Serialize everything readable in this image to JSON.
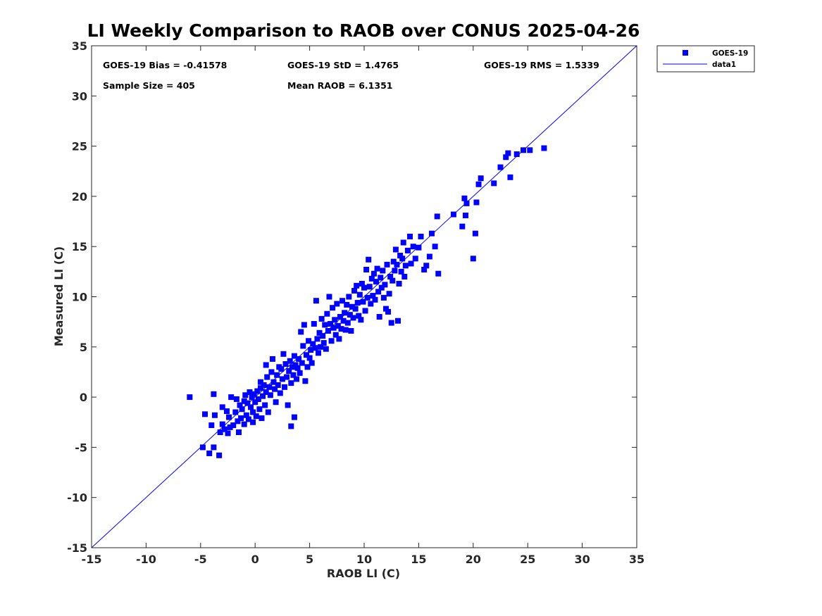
{
  "chart_data": {
    "type": "scatter",
    "title": "LI Weekly Comparison to RAOB over CONUS 2025-04-26",
    "xlabel": "RAOB LI (C)",
    "ylabel": "Measured LI (C)",
    "xlim": [
      -15,
      35
    ],
    "ylim": [
      -15,
      35
    ],
    "xticks": [
      "-15",
      "-10",
      "-5",
      "0",
      "5",
      "10",
      "15",
      "20",
      "25",
      "30",
      "35"
    ],
    "yticks": [
      "-15",
      "-10",
      "-5",
      "0",
      "5",
      "10",
      "15",
      "20",
      "25",
      "30",
      "35"
    ],
    "grid": false,
    "legend_position": "outside-top-right",
    "stats": {
      "bias": "GOES-19 Bias = -0.41578",
      "std": "GOES-19 StD = 1.4765",
      "rms": "GOES-19 RMS = 1.5339",
      "sample_size": "Sample Size = 405",
      "mean_raob": "Mean RAOB = 6.1351"
    },
    "series": [
      {
        "name": "GOES-19",
        "kind": "scatter",
        "marker": "square",
        "color": "#0000ff",
        "points": [
          [
            -6.0,
            0.0
          ],
          [
            -4.8,
            -5.0
          ],
          [
            -4.6,
            -1.7
          ],
          [
            -4.2,
            -5.6
          ],
          [
            -4.0,
            -2.8
          ],
          [
            -3.8,
            0.3
          ],
          [
            -3.8,
            -5.0
          ],
          [
            -3.7,
            -1.8
          ],
          [
            -3.3,
            -5.8
          ],
          [
            -3.2,
            -3.5
          ],
          [
            -3.0,
            -1.0
          ],
          [
            -3.0,
            -2.7
          ],
          [
            -2.8,
            -3.2
          ],
          [
            -2.6,
            -1.4
          ],
          [
            -2.5,
            -3.6
          ],
          [
            -2.4,
            -2.0
          ],
          [
            -2.3,
            -3.0
          ],
          [
            -2.2,
            0.0
          ],
          [
            -2.0,
            -2.8
          ],
          [
            -1.8,
            -1.5
          ],
          [
            -1.7,
            -0.2
          ],
          [
            -1.6,
            -2.4
          ],
          [
            -1.5,
            -3.5
          ],
          [
            -1.4,
            -0.8
          ],
          [
            -1.3,
            -2.1
          ],
          [
            -1.2,
            -1.2
          ],
          [
            -1.0,
            -0.4
          ],
          [
            -1.0,
            -2.7
          ],
          [
            -0.9,
            0.2
          ],
          [
            -0.8,
            -1.8
          ],
          [
            -0.7,
            -0.6
          ],
          [
            -0.6,
            -2.2
          ],
          [
            -0.5,
            0.5
          ],
          [
            -0.4,
            -1.0
          ],
          [
            -0.3,
            0.0
          ],
          [
            -0.2,
            -2.5
          ],
          [
            -0.2,
            -1.5
          ],
          [
            -0.1,
            0.3
          ],
          [
            0.0,
            -0.5
          ],
          [
            0.1,
            -1.9
          ],
          [
            0.2,
            0.6
          ],
          [
            0.3,
            -0.2
          ],
          [
            0.4,
            -1.2
          ],
          [
            0.5,
            0.9
          ],
          [
            0.5,
            1.5
          ],
          [
            0.6,
            -2.1
          ],
          [
            0.7,
            0.1
          ],
          [
            0.8,
            1.2
          ],
          [
            0.9,
            -0.8
          ],
          [
            1.0,
            0.5
          ],
          [
            1.0,
            3.2
          ],
          [
            1.1,
            2.0
          ],
          [
            1.2,
            -1.5
          ],
          [
            1.3,
            1.0
          ],
          [
            1.4,
            0.2
          ],
          [
            1.5,
            2.5
          ],
          [
            1.6,
            3.8
          ],
          [
            1.7,
            1.5
          ],
          [
            1.8,
            0.8
          ],
          [
            1.9,
            -0.5
          ],
          [
            2.0,
            2.2
          ],
          [
            2.1,
            1.2
          ],
          [
            2.2,
            3.0
          ],
          [
            2.3,
            0.4
          ],
          [
            2.4,
            2.8
          ],
          [
            2.5,
            1.8
          ],
          [
            2.6,
            4.3
          ],
          [
            2.7,
            1.0
          ],
          [
            2.8,
            3.3
          ],
          [
            2.9,
            2.0
          ],
          [
            3.0,
            -0.8
          ],
          [
            3.1,
            2.6
          ],
          [
            3.2,
            3.6
          ],
          [
            3.3,
            1.4
          ],
          [
            3.3,
            -2.9
          ],
          [
            3.4,
            3.0
          ],
          [
            3.5,
            2.2
          ],
          [
            3.6,
            -2.0
          ],
          [
            3.6,
            4.1
          ],
          [
            3.7,
            3.2
          ],
          [
            3.8,
            1.8
          ],
          [
            3.9,
            2.9
          ],
          [
            4.0,
            3.8
          ],
          [
            4.1,
            2.4
          ],
          [
            4.2,
            6.5
          ],
          [
            4.3,
            3.4
          ],
          [
            4.4,
            5.1
          ],
          [
            4.5,
            7.2
          ],
          [
            4.6,
            1.6
          ],
          [
            4.7,
            4.2
          ],
          [
            4.8,
            3.0
          ],
          [
            4.9,
            5.6
          ],
          [
            5.0,
            3.9
          ],
          [
            5.1,
            4.7
          ],
          [
            5.2,
            3.4
          ],
          [
            5.3,
            5.3
          ],
          [
            5.4,
            7.3
          ],
          [
            5.5,
            4.9
          ],
          [
            5.6,
            9.6
          ],
          [
            5.7,
            5.8
          ],
          [
            5.8,
            4.4
          ],
          [
            5.9,
            6.4
          ],
          [
            6.0,
            5.0
          ],
          [
            6.1,
            7.8
          ],
          [
            6.2,
            6.1
          ],
          [
            6.3,
            5.4
          ],
          [
            6.4,
            7.2
          ],
          [
            6.5,
            4.8
          ],
          [
            6.6,
            8.3
          ],
          [
            6.7,
            6.6
          ],
          [
            6.8,
            10.0
          ],
          [
            6.9,
            7.3
          ],
          [
            7.0,
            5.6
          ],
          [
            7.1,
            8.9
          ],
          [
            7.2,
            6.9
          ],
          [
            7.3,
            7.7
          ],
          [
            7.4,
            6.2
          ],
          [
            7.5,
            9.3
          ],
          [
            7.6,
            7.1
          ],
          [
            7.7,
            5.8
          ],
          [
            7.8,
            8.0
          ],
          [
            7.9,
            6.8
          ],
          [
            8.0,
            9.6
          ],
          [
            8.1,
            7.6
          ],
          [
            8.2,
            8.4
          ],
          [
            8.3,
            6.7
          ],
          [
            8.4,
            9.2
          ],
          [
            8.5,
            7.4
          ],
          [
            8.6,
            10.0
          ],
          [
            8.7,
            8.2
          ],
          [
            8.8,
            6.6
          ],
          [
            8.9,
            9.0
          ],
          [
            9.0,
            7.9
          ],
          [
            9.1,
            10.6
          ],
          [
            9.2,
            8.8
          ],
          [
            9.3,
            11.1
          ],
          [
            9.4,
            9.4
          ],
          [
            9.5,
            8.1
          ],
          [
            9.6,
            10.2
          ],
          [
            9.7,
            7.7
          ],
          [
            9.8,
            11.3
          ],
          [
            9.9,
            9.5
          ],
          [
            10.0,
            10.9
          ],
          [
            10.1,
            8.6
          ],
          [
            10.2,
            12.7
          ],
          [
            10.3,
            9.9
          ],
          [
            10.4,
            13.7
          ],
          [
            10.5,
            11.0
          ],
          [
            10.6,
            9.3
          ],
          [
            10.7,
            11.8
          ],
          [
            10.8,
            10.1
          ],
          [
            10.9,
            12.3
          ],
          [
            11.0,
            9.7
          ],
          [
            11.1,
            11.5
          ],
          [
            11.2,
            12.8
          ],
          [
            11.3,
            10.5
          ],
          [
            11.4,
            8.0
          ],
          [
            11.5,
            11.9
          ],
          [
            11.6,
            10.9
          ],
          [
            11.7,
            12.6
          ],
          [
            11.8,
            9.9
          ],
          [
            11.9,
            11.2
          ],
          [
            12.0,
            8.8
          ],
          [
            12.1,
            13.2
          ],
          [
            12.2,
            8.5
          ],
          [
            12.3,
            10.3
          ],
          [
            12.4,
            12.0
          ],
          [
            12.5,
            7.4
          ],
          [
            12.6,
            11.6
          ],
          [
            12.7,
            13.5
          ],
          [
            12.8,
            12.6
          ],
          [
            12.9,
            14.7
          ],
          [
            13.0,
            13.2
          ],
          [
            13.1,
            7.6
          ],
          [
            13.2,
            11.3
          ],
          [
            13.3,
            14.1
          ],
          [
            13.4,
            12.5
          ],
          [
            13.5,
            13.8
          ],
          [
            13.6,
            15.4
          ],
          [
            13.7,
            12.0
          ],
          [
            13.8,
            13.1
          ],
          [
            14.0,
            14.6
          ],
          [
            14.2,
            16.0
          ],
          [
            14.3,
            13.3
          ],
          [
            14.5,
            15.0
          ],
          [
            14.7,
            13.8
          ],
          [
            15.0,
            14.9
          ],
          [
            15.2,
            16.0
          ],
          [
            15.5,
            12.7
          ],
          [
            15.7,
            13.1
          ],
          [
            16.0,
            14.0
          ],
          [
            16.2,
            16.3
          ],
          [
            16.5,
            15.0
          ],
          [
            16.7,
            18.0
          ],
          [
            16.8,
            12.3
          ],
          [
            18.2,
            18.2
          ],
          [
            19.0,
            17.0
          ],
          [
            19.2,
            19.8
          ],
          [
            19.3,
            18.1
          ],
          [
            19.4,
            19.3
          ],
          [
            20.0,
            13.8
          ],
          [
            20.2,
            16.3
          ],
          [
            20.3,
            19.4
          ],
          [
            20.5,
            21.2
          ],
          [
            20.7,
            21.8
          ],
          [
            21.9,
            21.3
          ],
          [
            22.5,
            22.9
          ],
          [
            23.0,
            23.9
          ],
          [
            23.2,
            24.3
          ],
          [
            23.4,
            21.9
          ],
          [
            24.0,
            24.2
          ],
          [
            24.6,
            24.6
          ],
          [
            25.2,
            24.6
          ],
          [
            26.5,
            24.8
          ]
        ]
      },
      {
        "name": "data1",
        "kind": "line",
        "color": "#0000ff",
        "x": [
          -15,
          35
        ],
        "y": [
          -15,
          35
        ]
      }
    ]
  }
}
